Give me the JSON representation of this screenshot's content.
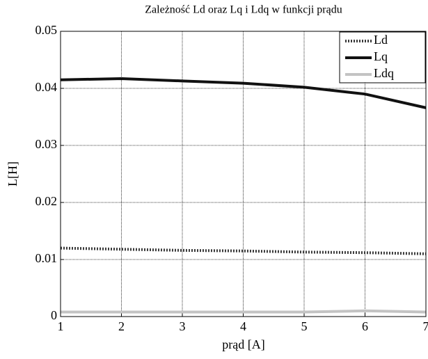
{
  "chart_data": {
    "type": "line",
    "title": "Zależność Ld oraz Lq i Ldq w funkcji prądu",
    "x_label": "prąd [A]",
    "y_label": "L[H]",
    "x": [
      1,
      2,
      3,
      4,
      5,
      6,
      7
    ],
    "series": [
      {
        "name": "Ld",
        "color": "#3a3a3a",
        "dash": "dotted",
        "values": [
          0.012,
          0.0118,
          0.0116,
          0.0115,
          0.0113,
          0.0112,
          0.011
        ]
      },
      {
        "name": "Lq",
        "color": "#111111",
        "dash": "solid",
        "values": [
          0.0415,
          0.0417,
          0.0413,
          0.0409,
          0.0402,
          0.039,
          0.0366
        ]
      },
      {
        "name": "Ldq",
        "color": "#c3c3c3",
        "dash": "solid",
        "values": [
          0.0008,
          0.0008,
          0.0008,
          0.0008,
          0.0008,
          0.001,
          0.0008
        ]
      }
    ],
    "xlim": [
      1,
      7
    ],
    "xticks": [
      1,
      2,
      3,
      4,
      5,
      6,
      7
    ],
    "ylim": [
      0,
      0.05
    ],
    "yticks": [
      0,
      0.01,
      0.02,
      0.03,
      0.04,
      0.05
    ],
    "grid": true,
    "legend": "northeast"
  }
}
